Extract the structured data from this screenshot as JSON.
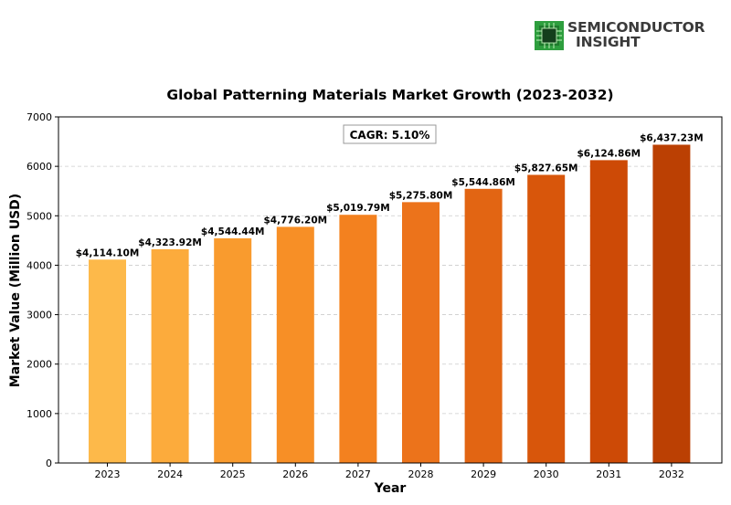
{
  "brand": {
    "line1": "SEMICONDUCTOR",
    "line2": "INSIGHT",
    "icon": "chip-icon",
    "icon_color": "#2e9e3e"
  },
  "chart_data": {
    "type": "bar",
    "title": "Global Patterning Materials Market Growth (2023-2032)",
    "xlabel": "Year",
    "ylabel": "Market Value (Million USD)",
    "categories": [
      "2023",
      "2024",
      "2025",
      "2026",
      "2027",
      "2028",
      "2029",
      "2030",
      "2031",
      "2032"
    ],
    "values": [
      4114.1,
      4323.92,
      4544.44,
      4776.2,
      5019.79,
      5275.8,
      5544.86,
      5827.65,
      6124.86,
      6437.23
    ],
    "data_labels": [
      "$4,114.10M",
      "$4,323.92M",
      "$4,544.44M",
      "$4,776.20M",
      "$5,019.79M",
      "$5,275.80M",
      "$5,544.86M",
      "$5,827.65M",
      "$6,124.86M",
      "$6,437.23M"
    ],
    "ylim": [
      0,
      7000
    ],
    "yticks": [
      "0",
      "1000",
      "2000",
      "3000",
      "4000",
      "5000",
      "6000",
      "7000"
    ],
    "ytick_values": [
      0,
      1000,
      2000,
      3000,
      4000,
      5000,
      6000,
      7000
    ],
    "grid": "horizontal dashed",
    "annotation": "CAGR: 5.10%",
    "bar_colors": [
      "#fdb94a",
      "#fcab3c",
      "#f99b2e",
      "#f78f26",
      "#f3811f",
      "#ec731b",
      "#e26513",
      "#d8560b",
      "#cd4a06",
      "#bb4003"
    ],
    "axis_color": "#000000",
    "grid_color": "#cccccc"
  }
}
